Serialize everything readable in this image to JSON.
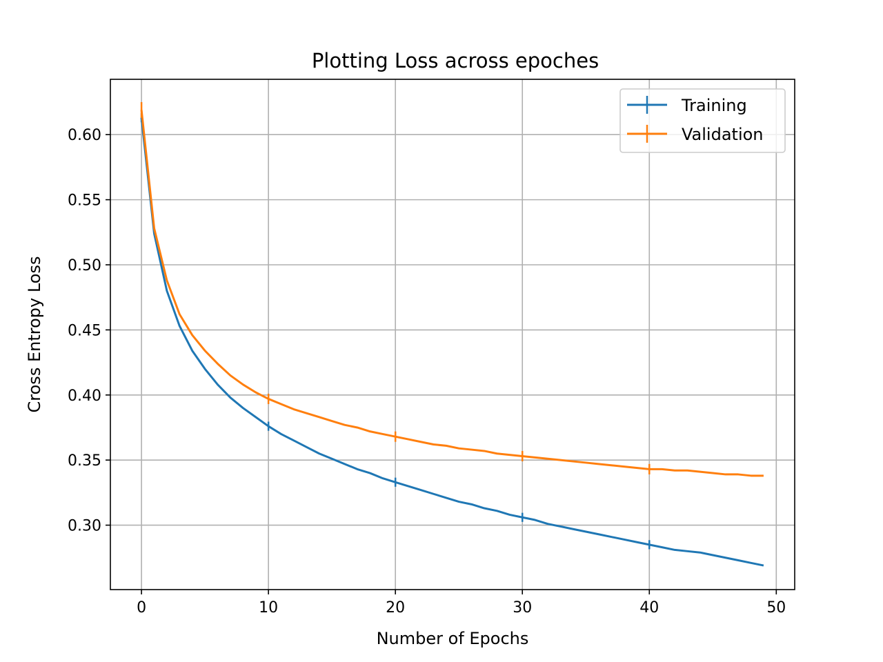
{
  "chart_data": {
    "type": "line",
    "title": "Plotting Loss across epoches",
    "xlabel": "Number of Epochs",
    "ylabel": "Cross Entropy Loss",
    "xlim": [
      -2.45,
      51.45
    ],
    "ylim": [
      0.2505,
      0.6425
    ],
    "xticks": [
      0,
      10,
      20,
      30,
      40,
      50
    ],
    "xtick_labels": [
      "0",
      "10",
      "20",
      "30",
      "40",
      "50"
    ],
    "yticks": [
      0.3,
      0.35,
      0.4,
      0.45,
      0.5,
      0.55,
      0.6
    ],
    "ytick_labels": [
      "0.30",
      "0.35",
      "0.40",
      "0.45",
      "0.50",
      "0.55",
      "0.60"
    ],
    "grid": true,
    "legend_position": "top-right",
    "x": [
      0,
      1,
      2,
      3,
      4,
      5,
      6,
      7,
      8,
      9,
      10,
      11,
      12,
      13,
      14,
      15,
      16,
      17,
      18,
      19,
      20,
      21,
      22,
      23,
      24,
      25,
      26,
      27,
      28,
      29,
      30,
      31,
      32,
      33,
      34,
      35,
      36,
      37,
      38,
      39,
      40,
      41,
      42,
      43,
      44,
      45,
      46,
      47,
      48,
      49
    ],
    "series": [
      {
        "name": "Training",
        "color": "#1f77b4",
        "values": [
          0.613,
          0.524,
          0.48,
          0.453,
          0.434,
          0.42,
          0.408,
          0.398,
          0.39,
          0.383,
          0.376,
          0.37,
          0.365,
          0.36,
          0.355,
          0.351,
          0.347,
          0.343,
          0.34,
          0.336,
          0.333,
          0.33,
          0.327,
          0.324,
          0.321,
          0.318,
          0.316,
          0.313,
          0.311,
          0.308,
          0.306,
          0.304,
          0.301,
          0.299,
          0.297,
          0.295,
          0.293,
          0.291,
          0.289,
          0.287,
          0.285,
          0.283,
          0.281,
          0.28,
          0.279,
          0.277,
          0.275,
          0.273,
          0.271,
          0.269
        ],
        "errorbar_every": 10,
        "errors": [
          0.002,
          0.001,
          0.001,
          0.001,
          0.001,
          0.001,
          0.001,
          0.001,
          0.001,
          0.001,
          0.001,
          0.001,
          0.001,
          0.001,
          0.001,
          0.001,
          0.001,
          0.001,
          0.001,
          0.001,
          0.001,
          0.001,
          0.001,
          0.001,
          0.001,
          0.001,
          0.001,
          0.001,
          0.001,
          0.001,
          0.001,
          0.001,
          0.001,
          0.001,
          0.001,
          0.001,
          0.001,
          0.001,
          0.001,
          0.001,
          0.001,
          0.001,
          0.001,
          0.001,
          0.001,
          0.001,
          0.001,
          0.001,
          0.001,
          0.001
        ]
      },
      {
        "name": "Validation",
        "color": "#ff7f0e",
        "values": [
          0.619,
          0.528,
          0.488,
          0.462,
          0.446,
          0.434,
          0.424,
          0.415,
          0.408,
          0.402,
          0.397,
          0.393,
          0.389,
          0.386,
          0.383,
          0.38,
          0.377,
          0.375,
          0.372,
          0.37,
          0.368,
          0.366,
          0.364,
          0.362,
          0.361,
          0.359,
          0.358,
          0.357,
          0.355,
          0.354,
          0.353,
          0.352,
          0.351,
          0.35,
          0.349,
          0.348,
          0.347,
          0.346,
          0.345,
          0.344,
          0.343,
          0.343,
          0.342,
          0.342,
          0.341,
          0.34,
          0.339,
          0.339,
          0.338,
          0.338
        ],
        "errorbar_every": 10,
        "errors": [
          0.006,
          0.004,
          0.004,
          0.004,
          0.004,
          0.004,
          0.004,
          0.004,
          0.004,
          0.004,
          0.004,
          0.004,
          0.004,
          0.004,
          0.004,
          0.004,
          0.004,
          0.004,
          0.004,
          0.004,
          0.004,
          0.004,
          0.004,
          0.004,
          0.004,
          0.004,
          0.004,
          0.004,
          0.004,
          0.004,
          0.004,
          0.004,
          0.004,
          0.004,
          0.004,
          0.004,
          0.004,
          0.004,
          0.004,
          0.004,
          0.004,
          0.004,
          0.004,
          0.004,
          0.004,
          0.004,
          0.004,
          0.004,
          0.004,
          0.004
        ]
      }
    ]
  }
}
